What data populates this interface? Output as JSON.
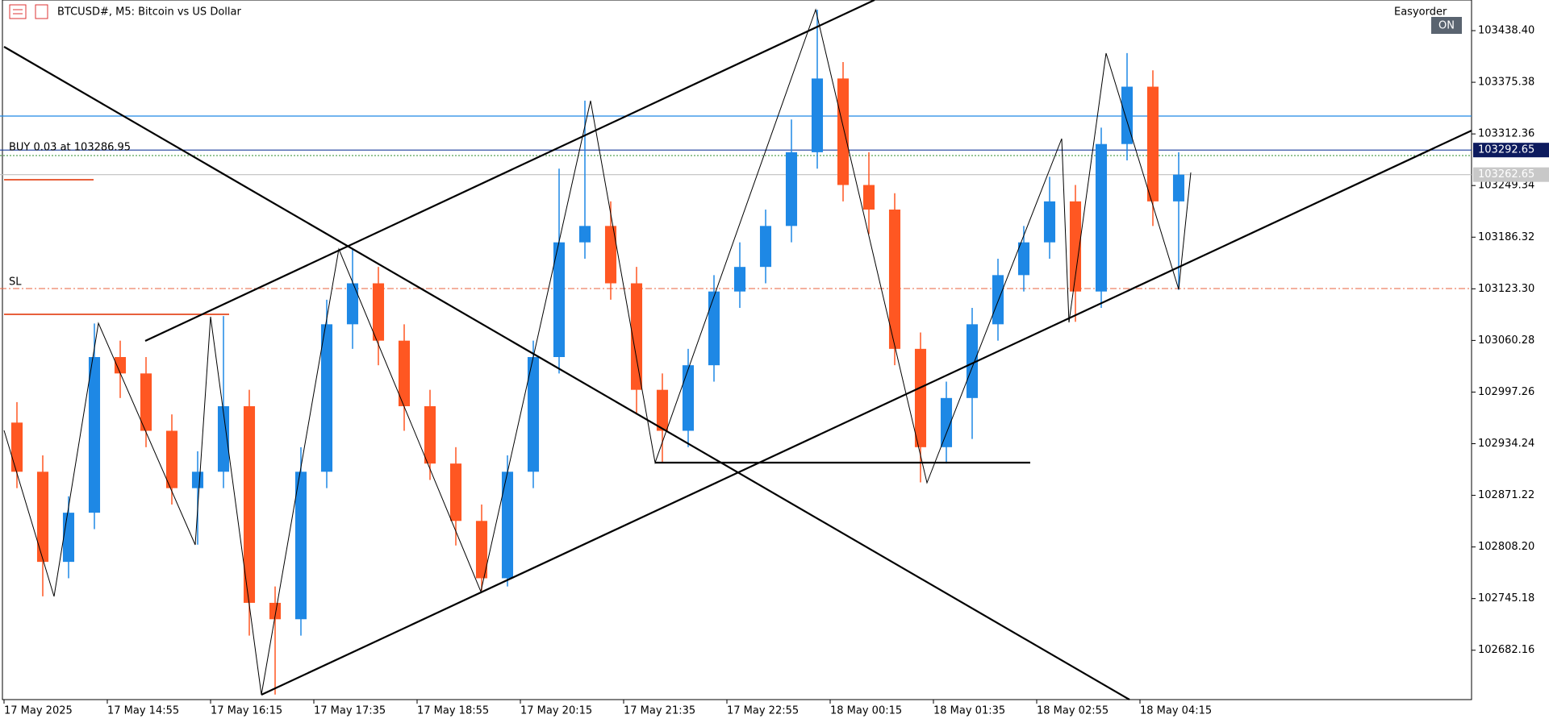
{
  "header": {
    "title": "BTCUSD#, M5:  Bitcoin vs US Dollar",
    "panel": "Easyorder",
    "toggle": "ON"
  },
  "order_label": "BUY 0.03 at 103286.95",
  "sl_label": "SL",
  "chart_data": {
    "type": "candlestick",
    "up_color": "#1e88e5",
    "down_color": "#ff5722",
    "ylim": [
      102621.9,
      103475.8
    ],
    "yticks": [
      {
        "value": 103438.4,
        "label": "103438.40"
      },
      103375.38,
      103312.36,
      103249.34,
      103186.32,
      {
        "value": 103123.3,
        "label": "103123.30"
      },
      103060.28,
      102997.26,
      102934.24,
      102871.22,
      {
        "value": 102808.2,
        "label": "102808.20"
      },
      102745.18,
      102682.16
    ],
    "time_labels": [
      "17 May 2025",
      "17 May 14:55",
      "17 May 16:15",
      "17 May 17:35",
      "17 May 18:55",
      "17 May 20:15",
      "17 May 21:35",
      "17 May 22:55",
      "18 May 00:15",
      "18 May 01:35",
      "18 May 02:55",
      "18 May 04:15"
    ],
    "price_tags": [
      {
        "value": 103292.65,
        "color": "#0d1b5e",
        "line": "#1a3d9c"
      },
      {
        "value": 103262.65,
        "color": "#c8c8c8",
        "line": "#c0c0c0"
      }
    ],
    "open": [
      102960,
      102900,
      102790,
      102850,
      103040,
      103020,
      102950,
      102880,
      102900,
      102980,
      102740,
      102720,
      102900,
      103080,
      103130,
      103060,
      102980,
      102910,
      102840,
      102770,
      102900,
      103040,
      103180,
      103200,
      103130,
      103000,
      102950,
      103030,
      103120,
      103150,
      103200,
      103290,
      103380,
      103250,
      103220,
      103050,
      102930,
      102990,
      103080,
      103140,
      103180,
      103230,
      103120,
      103300,
      103370,
      103230
    ],
    "high": [
      102985,
      102920,
      102870,
      103081,
      103060,
      103040,
      102970,
      102925,
      103090,
      103000,
      102760,
      102930,
      103110,
      103172,
      103150,
      103080,
      103000,
      102930,
      102860,
      102920,
      103060,
      103270,
      103353,
      103230,
      103150,
      103020,
      103050,
      103140,
      103180,
      103220,
      103330,
      103464,
      103400,
      103290,
      103240,
      103070,
      103010,
      103100,
      103160,
      103200,
      103260,
      103250,
      103320,
      103411,
      103390,
      103290
    ],
    "low": [
      102880,
      102748,
      102770,
      102830,
      102990,
      102930,
      102860,
      102811,
      102880,
      102700,
      102628,
      102700,
      102880,
      103050,
      103030,
      102950,
      102890,
      102810,
      102755,
      102760,
      102880,
      103020,
      103160,
      103110,
      102970,
      102911,
      102930,
      103010,
      103100,
      103130,
      103180,
      103270,
      103230,
      103190,
      103030,
      102887,
      102910,
      102940,
      103060,
      103120,
      103160,
      103083,
      103100,
      103280,
      103200,
      103122
    ],
    "close": [
      102900,
      102790,
      102850,
      103040,
      103020,
      102950,
      102880,
      102900,
      102980,
      102740,
      102720,
      102900,
      103080,
      103130,
      103060,
      102980,
      102910,
      102840,
      102770,
      102900,
      103040,
      103180,
      103200,
      103130,
      103000,
      102950,
      103030,
      103120,
      103150,
      103200,
      103290,
      103380,
      103250,
      103220,
      103050,
      102930,
      102990,
      103080,
      103140,
      103180,
      103230,
      103120,
      103300,
      103370,
      103230,
      103262.65
    ]
  }
}
